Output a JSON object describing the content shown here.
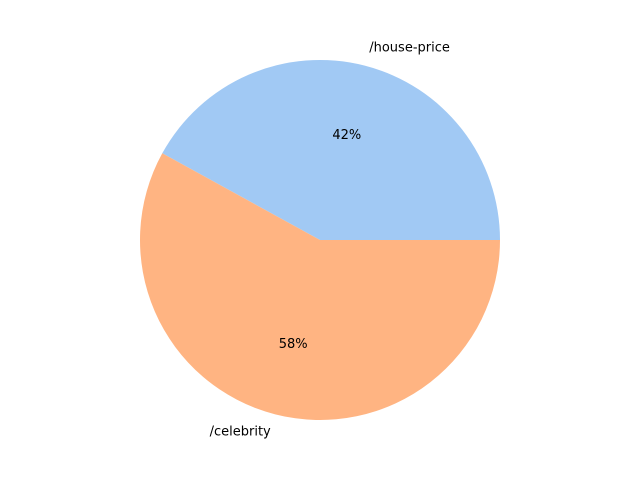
{
  "chart_data": {
    "type": "pie",
    "start_angle_deg": 0,
    "direction": "counterclockwise",
    "slices": [
      {
        "label": "/house-price",
        "value": 42,
        "pct_label": "42%",
        "color": "#a1c9f4"
      },
      {
        "label": "/celebrity",
        "value": 58,
        "pct_label": "58%",
        "color": "#ffb482"
      }
    ]
  }
}
